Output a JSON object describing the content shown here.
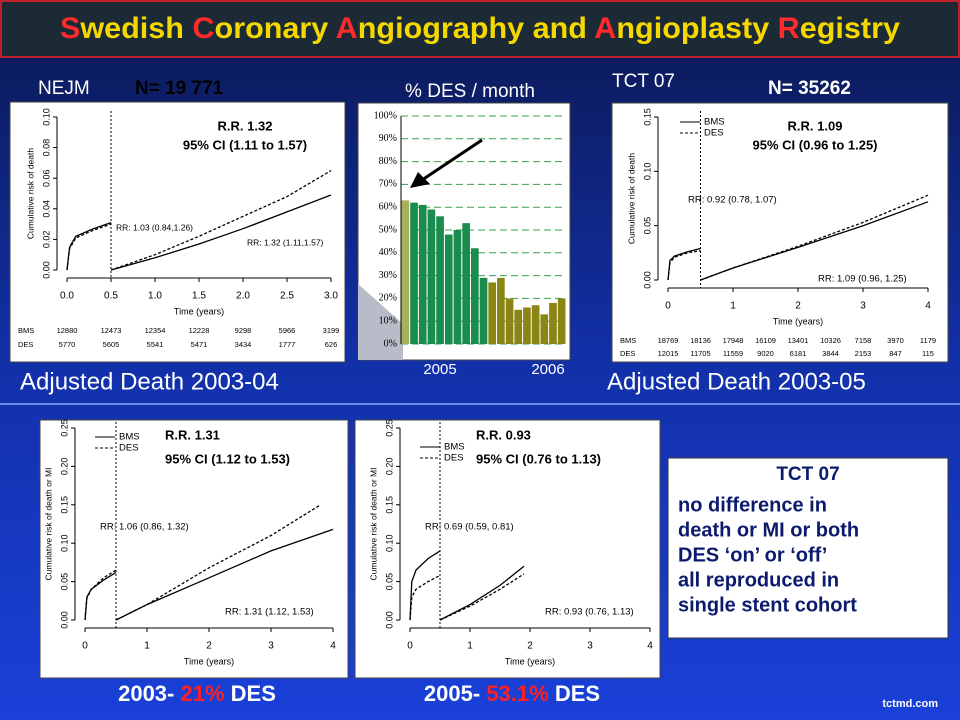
{
  "slide": {
    "title": "Swedish Coronary Angiography and Angioplasty Registry",
    "nejm": "NEJM",
    "n_left": "N= 19 771",
    "tct_top": "TCT 07",
    "n_right": "N= 35262",
    "caption_left": "Adjusted Death 2003-04",
    "caption_right": "Adjusted Death 2003-05",
    "bottom_left": {
      "prefix": "2003- ",
      "highlight": "21%",
      "suffix": " DES"
    },
    "bottom_right": {
      "prefix": "2005- ",
      "highlight": "53.1%",
      "suffix": " DES"
    },
    "box": {
      "heading": "TCT 07",
      "lines": [
        "no difference in",
        "death or MI or both",
        "DES ‘on’ or ‘off’",
        "all reproduced in",
        "single stent cohort"
      ]
    },
    "footer": "tctmd.com"
  },
  "chart_data": [
    {
      "type": "line",
      "xlabel": "Time (years)",
      "ylabel": "Cumulative risk of death",
      "xlim": [
        0,
        3
      ],
      "ylim": [
        0,
        0.1
      ],
      "xticks": [
        {
          "value": 0,
          "label": "0.0"
        },
        {
          "value": 0.5,
          "label": "0.5"
        },
        {
          "value": 1,
          "label": "1.0"
        },
        {
          "value": 1.5,
          "label": "1.5"
        },
        {
          "value": 2,
          "label": "2.0"
        },
        {
          "value": 2.5,
          "label": "2.5"
        },
        {
          "value": 3,
          "label": "3.0"
        }
      ],
      "yticks": [
        {
          "value": 0,
          "label": "0.00"
        },
        {
          "value": 0.02,
          "label": "0.02"
        },
        {
          "value": 0.04,
          "label": "0.04"
        },
        {
          "value": 0.06,
          "label": "0.06"
        },
        {
          "value": 0.08,
          "label": "0.08"
        },
        {
          "value": 0.1,
          "label": "0.10"
        }
      ],
      "vline": 0.5,
      "annotations": [
        "R.R. 1.32",
        "95% CI (1.11 to 1.57)",
        "RR: 1.03 (0.84,1.26)",
        "RR: 1.32 (1.11,1.57)"
      ],
      "series": [
        {
          "name": "BMS",
          "color": "#000000",
          "dash": "solid",
          "x": [
            0,
            0.03,
            0.1,
            0.3,
            0.5,
            0.5,
            0.5,
            1,
            1.5,
            2,
            2.5,
            3
          ],
          "values": [
            0,
            0.015,
            0.022,
            0.027,
            0.031,
            null,
            0,
            0.008,
            0.017,
            0.027,
            0.038,
            0.049
          ]
        },
        {
          "name": "DES",
          "color": "#000000",
          "dash": "dashed",
          "x": [
            0,
            0.03,
            0.1,
            0.3,
            0.5,
            0.5,
            0.5,
            1,
            1.5,
            2,
            2.5,
            3
          ],
          "values": [
            0,
            0.014,
            0.021,
            0.026,
            0.03,
            null,
            0,
            0.01,
            0.022,
            0.035,
            0.048,
            0.065
          ]
        }
      ],
      "risk_table": [
        [
          12880,
          12473,
          12354,
          12228,
          9298,
          5966,
          3199
        ],
        [
          5770,
          5605,
          5541,
          5471,
          3434,
          1777,
          626
        ]
      ]
    },
    {
      "type": "bar",
      "title": "% DES / month",
      "categories": [
        null,
        null,
        null,
        null,
        null,
        null,
        null,
        null,
        null,
        null,
        null,
        null,
        null,
        null,
        null,
        null,
        null,
        null,
        null
      ],
      "values": [
        63,
        62,
        61,
        59,
        56,
        48,
        50,
        53,
        42,
        29,
        27,
        29,
        20,
        15,
        16,
        17,
        13,
        18,
        20
      ],
      "colors": [
        "#a9b05a",
        "#1a8c4e",
        "#1a8c4e",
        "#1a8c4e",
        "#1a8c4e",
        "#1a8c4e",
        "#1a8c4e",
        "#1a8c4e",
        "#1a8c4e",
        "#1a8c4e",
        "#8a8514",
        "#8a8514",
        "#8a8514",
        "#8a8514",
        "#8a8514",
        "#8a8514",
        "#8a8514",
        "#8a8514",
        "#8a8514"
      ],
      "ylim": [
        0,
        100
      ],
      "yticks": [
        {
          "value": 0,
          "label": "0%"
        },
        {
          "value": 10,
          "label": "10%"
        },
        {
          "value": 20,
          "label": "20%"
        },
        {
          "value": 30,
          "label": "30%"
        },
        {
          "value": 40,
          "label": "40%"
        },
        {
          "value": 50,
          "label": "50%"
        },
        {
          "value": 60,
          "label": "60%"
        },
        {
          "value": 70,
          "label": "70%"
        },
        {
          "value": 80,
          "label": "80%"
        },
        {
          "value": 90,
          "label": "90%"
        },
        {
          "value": 100,
          "label": "100%"
        }
      ],
      "grid": true,
      "annotations": [
        "2005",
        "2006"
      ]
    },
    {
      "type": "line",
      "xlabel": "Time (years)",
      "ylabel": "Cumulative risk of death",
      "xlim": [
        0,
        4
      ],
      "ylim": [
        0,
        0.15
      ],
      "xticks": [
        0,
        1,
        2,
        3,
        4
      ],
      "yticks": [
        {
          "value": 0,
          "label": "0.00"
        },
        {
          "value": 0.05,
          "label": "0.05"
        },
        {
          "value": 0.1,
          "label": "0.10"
        },
        {
          "value": 0.15,
          "label": "0.15"
        }
      ],
      "vline": 0.5,
      "legend": "upper left",
      "annotations": [
        "R.R. 1.09",
        "95% CI (0.96 to 1.25)",
        "RR: 0.92 (0.78, 1.07)",
        "RR: 1.09 (0.96, 1.25)"
      ],
      "series": [
        {
          "name": "BMS",
          "color": "#000000",
          "dash": "solid",
          "x": [
            0,
            0.03,
            0.1,
            0.3,
            0.5,
            0.5,
            0.5,
            1,
            2,
            3,
            4
          ],
          "values": [
            0,
            0.018,
            0.022,
            0.026,
            0.029,
            null,
            0,
            0.011,
            0.03,
            0.05,
            0.072
          ]
        },
        {
          "name": "DES",
          "color": "#000000",
          "dash": "dashed",
          "x": [
            0,
            0.03,
            0.1,
            0.3,
            0.5,
            0.5,
            0.5,
            1,
            2,
            3,
            4
          ],
          "values": [
            0,
            0.016,
            0.021,
            0.025,
            0.027,
            null,
            0,
            0.011,
            0.031,
            0.053,
            0.078
          ]
        }
      ],
      "risk_table": [
        [
          18769,
          18136,
          17948,
          16109,
          13401,
          10326,
          7158,
          3970,
          1179
        ],
        [
          12015,
          11705,
          11559,
          9020,
          6181,
          3844,
          2153,
          847,
          115
        ]
      ]
    },
    {
      "type": "line",
      "xlabel": "Time (years)",
      "ylabel": "Cumulative risk of death or MI",
      "xlim": [
        0,
        4
      ],
      "ylim": [
        0,
        0.25
      ],
      "xticks": [
        0,
        1,
        2,
        3,
        4
      ],
      "yticks": [
        {
          "value": 0,
          "label": "0.00"
        },
        {
          "value": 0.05,
          "label": "0.05"
        },
        {
          "value": 0.1,
          "label": "0.10"
        },
        {
          "value": 0.15,
          "label": "0.15"
        },
        {
          "value": 0.2,
          "label": "0.20"
        },
        {
          "value": 0.25,
          "label": "0.25"
        }
      ],
      "vline": 0.5,
      "legend": "upper left",
      "annotations": [
        "R.R. 1.31",
        "95% CI (1.12 to 1.53)",
        "RR: 1.06 (0.86, 1.32)",
        "RR: 1.31 (1.12, 1.53)"
      ],
      "series": [
        {
          "name": "BMS",
          "color": "#000000",
          "dash": "solid",
          "x": [
            0,
            0.03,
            0.1,
            0.3,
            0.5,
            0.5,
            0.5,
            1,
            2,
            3,
            4
          ],
          "values": [
            0,
            0.03,
            0.04,
            0.052,
            0.062,
            null,
            0,
            0.02,
            0.055,
            0.09,
            0.118
          ]
        },
        {
          "name": "DES",
          "color": "#000000",
          "dash": "dashed",
          "x": [
            0,
            0.03,
            0.1,
            0.3,
            0.5,
            0.5,
            0.5,
            1,
            2,
            3,
            3.8
          ],
          "values": [
            0,
            0.028,
            0.04,
            0.055,
            0.065,
            null,
            0,
            0.02,
            0.068,
            0.11,
            0.15
          ]
        }
      ]
    },
    {
      "type": "line",
      "xlabel": "Time (years)",
      "ylabel": "Cumulative risk of death or MI",
      "xlim": [
        0,
        4
      ],
      "ylim": [
        0,
        0.25
      ],
      "xticks": [
        0,
        1,
        2,
        3,
        4
      ],
      "yticks": [
        {
          "value": 0,
          "label": "0.00"
        },
        {
          "value": 0.05,
          "label": "0.05"
        },
        {
          "value": 0.1,
          "label": "0.10"
        },
        {
          "value": 0.15,
          "label": "0.15"
        },
        {
          "value": 0.2,
          "label": "0.20"
        },
        {
          "value": 0.25,
          "label": "0.25"
        }
      ],
      "vline": 0.5,
      "legend": "upper left",
      "annotations": [
        "R.R. 0.93",
        "95% CI (0.76 to 1.13)",
        "RR: 0.69 (0.59, 0.81)",
        "RR: 0.93 (0.76, 1.13)"
      ],
      "series": [
        {
          "name": "BMS",
          "color": "#000000",
          "dash": "solid",
          "x": [
            0,
            0.03,
            0.1,
            0.3,
            0.5,
            0.5,
            0.5,
            1,
            1.5,
            1.9
          ],
          "values": [
            0,
            0.05,
            0.065,
            0.08,
            0.09,
            null,
            0,
            0.02,
            0.045,
            0.07
          ]
        },
        {
          "name": "DES",
          "color": "#000000",
          "dash": "dashed",
          "x": [
            0,
            0.03,
            0.1,
            0.3,
            0.5,
            0.5,
            0.5,
            1,
            1.5,
            1.9
          ],
          "values": [
            0,
            0.03,
            0.04,
            0.05,
            0.058,
            null,
            0,
            0.018,
            0.04,
            0.06
          ]
        }
      ]
    }
  ]
}
